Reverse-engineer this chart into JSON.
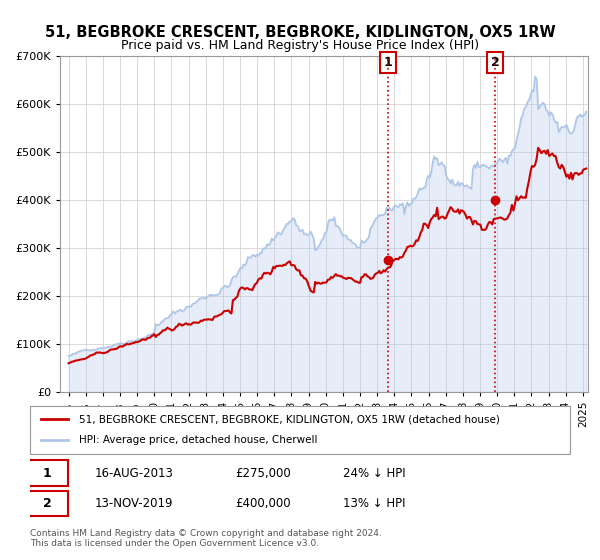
{
  "title": "51, BEGBROKE CRESCENT, BEGBROKE, KIDLINGTON, OX5 1RW",
  "subtitle": "Price paid vs. HM Land Registry's House Price Index (HPI)",
  "legend_line1": "51, BEGBROKE CRESCENT, BEGBROKE, KIDLINGTON, OX5 1RW (detached house)",
  "legend_line2": "HPI: Average price, detached house, Cherwell",
  "footnote1": "Contains HM Land Registry data © Crown copyright and database right 2024.",
  "footnote2": "This data is licensed under the Open Government Licence v3.0.",
  "annotation1": {
    "label": "1",
    "date": "16-AUG-2013",
    "price": "£275,000",
    "pct": "24% ↓ HPI",
    "x_year": 2013.62,
    "y_val": 275000
  },
  "annotation2": {
    "label": "2",
    "date": "13-NOV-2019",
    "price": "£400,000",
    "pct": "13% ↓ HPI",
    "x_year": 2019.87,
    "y_val": 400000
  },
  "hpi_color": "#aec6e8",
  "price_color": "#cc0000",
  "plot_bg": "#ffffff",
  "ylim": [
    0,
    700000
  ],
  "xlim_start": 1994.5,
  "xlim_end": 2025.3,
  "yticks": [
    0,
    100000,
    200000,
    300000,
    400000,
    500000,
    600000,
    700000
  ],
  "hpi_segments": [
    [
      1995.0,
      2000.0,
      75000,
      140000,
      0.012
    ],
    [
      2000.0,
      2004.5,
      140000,
      235000,
      0.015
    ],
    [
      2004.5,
      2007.9,
      235000,
      365000,
      0.015
    ],
    [
      2007.9,
      2009.3,
      365000,
      295000,
      0.018
    ],
    [
      2009.3,
      2010.5,
      295000,
      345000,
      0.015
    ],
    [
      2010.5,
      2012.0,
      345000,
      310000,
      0.013
    ],
    [
      2012.0,
      2014.5,
      310000,
      370000,
      0.012
    ],
    [
      2014.5,
      2016.5,
      370000,
      478000,
      0.015
    ],
    [
      2016.5,
      2018.5,
      478000,
      460000,
      0.013
    ],
    [
      2018.5,
      2020.5,
      460000,
      470000,
      0.012
    ],
    [
      2020.5,
      2022.3,
      470000,
      580000,
      0.018
    ],
    [
      2022.3,
      2023.5,
      580000,
      545000,
      0.018
    ],
    [
      2023.5,
      2025.2,
      545000,
      615000,
      0.015
    ]
  ],
  "price_segments": [
    [
      1995.0,
      2000.0,
      60000,
      110000,
      0.012
    ],
    [
      2000.0,
      2004.5,
      110000,
      185000,
      0.015
    ],
    [
      2004.5,
      2007.9,
      185000,
      270000,
      0.015
    ],
    [
      2007.9,
      2009.3,
      270000,
      225000,
      0.018
    ],
    [
      2009.3,
      2010.5,
      225000,
      255000,
      0.015
    ],
    [
      2010.5,
      2012.0,
      255000,
      235000,
      0.013
    ],
    [
      2012.0,
      2014.5,
      235000,
      285000,
      0.012
    ],
    [
      2014.5,
      2016.5,
      285000,
      360000,
      0.015
    ],
    [
      2016.5,
      2018.5,
      360000,
      350000,
      0.013
    ],
    [
      2018.5,
      2020.5,
      350000,
      360000,
      0.012
    ],
    [
      2020.5,
      2022.3,
      360000,
      505000,
      0.018
    ],
    [
      2022.3,
      2023.5,
      505000,
      470000,
      0.018
    ],
    [
      2023.5,
      2025.2,
      470000,
      475000,
      0.015
    ]
  ]
}
